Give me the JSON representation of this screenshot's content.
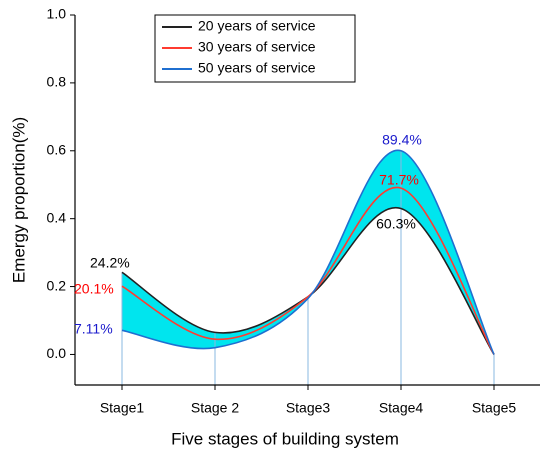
{
  "chart_data": {
    "type": "line",
    "xlabel": "Five stages of building system",
    "ylabel": "Emergy proportion(%)",
    "categories": [
      "Stage1",
      "Stage 2",
      "Stage3",
      "Stage4",
      "Stage5"
    ],
    "series": [
      {
        "name": "20 years of service",
        "color": "#222222",
        "values": [
          0.242,
          0.065,
          0.17,
          0.43,
          0.0
        ]
      },
      {
        "name": "30 years of service",
        "color": "#ff3b30",
        "values": [
          0.201,
          0.045,
          0.17,
          0.49,
          0.0
        ]
      },
      {
        "name": "50 years of service",
        "color": "#1f6fd0",
        "values": [
          0.0711,
          0.02,
          0.165,
          0.6,
          0.0
        ]
      }
    ],
    "fill_color": "#00e5ee",
    "annotations": [
      {
        "text": "24.2%",
        "color": "#000000"
      },
      {
        "text": "20.1%",
        "color": "#ff0000"
      },
      {
        "text": "7.11%",
        "color": "#1a1acc"
      },
      {
        "text": "89.4%",
        "color": "#1a1acc"
      },
      {
        "text": "71.7%",
        "color": "#ff0000"
      },
      {
        "text": "60.3%",
        "color": "#000000"
      }
    ],
    "ylim": [
      -0.09,
      1.0
    ],
    "yticks": [
      {
        "value": 0,
        "label": "0.0"
      },
      0.2,
      0.4,
      0.6,
      0.8,
      {
        "value": 1,
        "label": "1.0"
      }
    ],
    "legend": "upper left"
  }
}
